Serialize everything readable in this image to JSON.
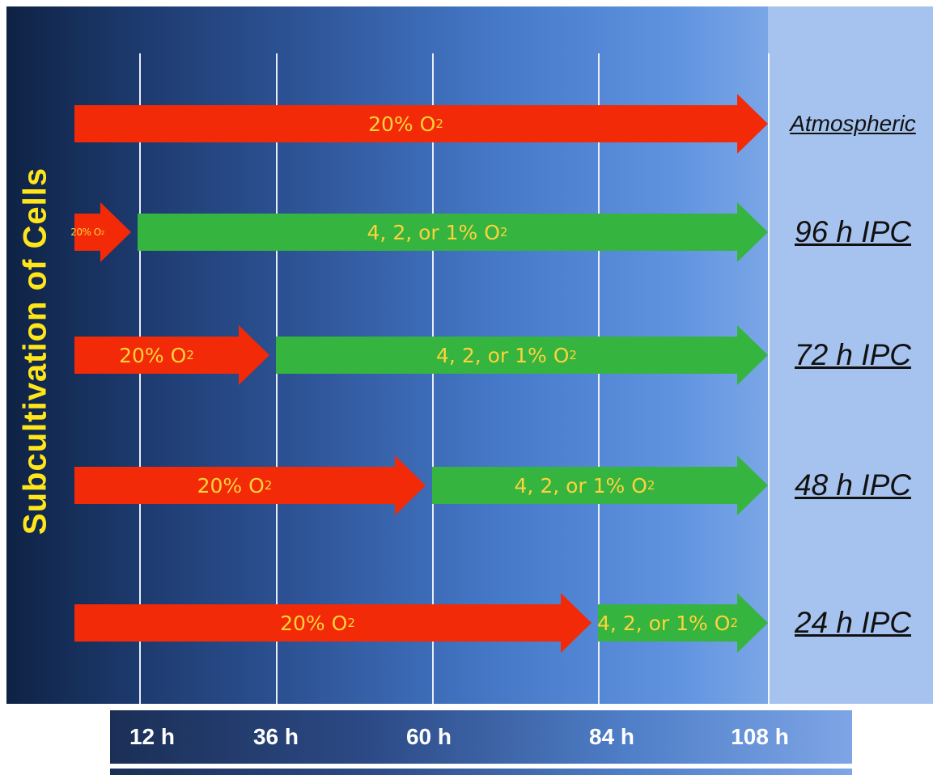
{
  "side_title": "Subcultivation of Cells",
  "colors": {
    "normoxia": "#f22a08",
    "hypoxia": "#35b43f",
    "arrow_text": "#ffd23a",
    "title": "#ffe61a"
  },
  "time_axis": {
    "ticks": [
      "12 h",
      "36 h",
      "60 h",
      "84 h",
      "108 h"
    ]
  },
  "rows": [
    {
      "label": "Atmospheric",
      "segments": [
        {
          "text": "20% O",
          "sub": "2",
          "type": "normoxia",
          "start": 0,
          "end": 108
        }
      ]
    },
    {
      "label": "96 h IPC",
      "segments": [
        {
          "text": "20% O",
          "sub": "2",
          "type": "normoxia",
          "start": 0,
          "end": 12
        },
        {
          "text": "4, 2, or 1% O",
          "sub": "2",
          "type": "hypoxia",
          "start": 12,
          "end": 108
        }
      ]
    },
    {
      "label": "72 h IPC",
      "segments": [
        {
          "text": "20% O",
          "sub": "2",
          "type": "normoxia",
          "start": 0,
          "end": 36
        },
        {
          "text": "4, 2, or 1% O",
          "sub": "2",
          "type": "hypoxia",
          "start": 36,
          "end": 108
        }
      ]
    },
    {
      "label": "48 h IPC",
      "segments": [
        {
          "text": "20% O",
          "sub": "2",
          "type": "normoxia",
          "start": 0,
          "end": 60
        },
        {
          "text": "4, 2, or 1% O",
          "sub": "2",
          "type": "hypoxia",
          "start": 60,
          "end": 108
        }
      ]
    },
    {
      "label": "24 h IPC",
      "segments": [
        {
          "text": "20% O",
          "sub": "2",
          "type": "normoxia",
          "start": 0,
          "end": 84
        },
        {
          "text": "4, 2, or 1% O",
          "sub": "2",
          "type": "hypoxia",
          "start": 84,
          "end": 108
        }
      ]
    }
  ]
}
